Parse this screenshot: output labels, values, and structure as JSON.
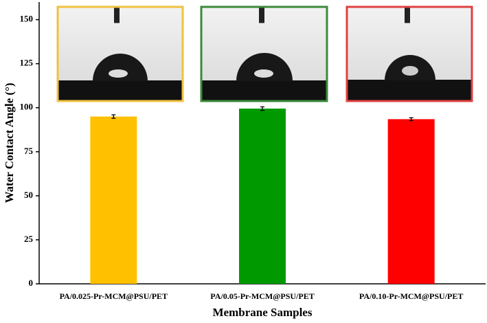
{
  "chart_data": {
    "type": "bar",
    "categories": [
      "PA/0.025-Pr-MCM@PSU/PET",
      "PA/0.05-Pr-MCM@PSU/PET",
      "PA/0.10-Pr-MCM@PSU/PET"
    ],
    "values": [
      95,
      99.5,
      93.5
    ],
    "errors": [
      1,
      1,
      0.8
    ],
    "colors": [
      "#ffc000",
      "#009a00",
      "#ff0000"
    ],
    "x_label": "Membrane Samples",
    "y_label": "Water Contact Angle (°)",
    "ylim": [
      0,
      160
    ],
    "yticks": [
      0,
      25,
      50,
      75,
      100,
      125,
      150
    ]
  }
}
